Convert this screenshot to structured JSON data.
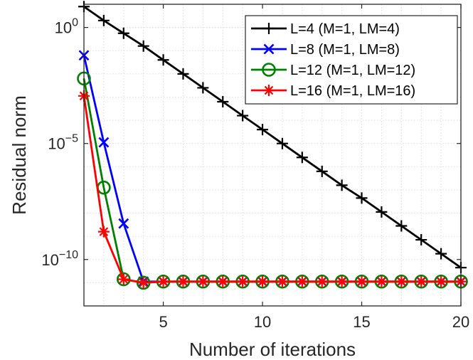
{
  "chart_data": {
    "type": "line",
    "xlabel": "Number of iterations",
    "ylabel": "Residual norm",
    "x_scale": "linear",
    "y_scale": "log",
    "xlim": [
      1,
      20
    ],
    "ylim_log10": [
      -12,
      1
    ],
    "x_ticks": [
      5,
      10,
      15,
      20
    ],
    "x_tick_labels": [
      "5",
      "10",
      "15",
      "20"
    ],
    "y_ticks_log10": [
      0,
      -5,
      -10
    ],
    "y_tick_labels": [
      {
        "base": "10",
        "exp": "0"
      },
      {
        "base": "10",
        "exp": "−5"
      },
      {
        "base": "10",
        "exp": "−10"
      }
    ],
    "grid": true,
    "legend_position": "top-right",
    "series": [
      {
        "name": "L=4 (M=1, LM=4)",
        "color": "#000000",
        "marker": "plus",
        "x": [
          1,
          2,
          3,
          4,
          5,
          6,
          7,
          8,
          9,
          10,
          11,
          12,
          13,
          14,
          15,
          16,
          17,
          18,
          19,
          20
        ],
        "log10_y": [
          0.9,
          0.3,
          -0.25,
          -0.8,
          -1.4,
          -2.0,
          -2.6,
          -3.2,
          -3.8,
          -4.4,
          -5.0,
          -5.6,
          -6.2,
          -6.8,
          -7.35,
          -7.95,
          -8.55,
          -9.15,
          -9.75,
          -10.35
        ]
      },
      {
        "name": "L=8 (M=1, LM=8)",
        "color": "#0000ff",
        "marker": "x",
        "x": [
          1,
          2,
          3,
          4,
          5,
          6,
          7,
          8,
          9,
          10,
          11,
          12,
          13,
          14,
          15,
          16,
          17,
          18,
          19,
          20
        ],
        "log10_y": [
          -1.2,
          -4.95,
          -8.45,
          -10.95,
          -10.95,
          -10.95,
          -10.95,
          -10.95,
          -10.95,
          -10.95,
          -10.95,
          -10.95,
          -10.95,
          -10.95,
          -10.95,
          -10.95,
          -10.95,
          -10.95,
          -10.95,
          -10.95
        ]
      },
      {
        "name": "L=12 (M=1, LM=12)",
        "color": "#008000",
        "marker": "circle",
        "x": [
          1,
          2,
          3,
          4,
          5,
          6,
          7,
          8,
          9,
          10,
          11,
          12,
          13,
          14,
          15,
          16,
          17,
          18,
          19,
          20
        ],
        "log10_y": [
          -2.2,
          -6.9,
          -10.85,
          -11.0,
          -10.95,
          -10.95,
          -10.95,
          -10.95,
          -10.95,
          -10.95,
          -10.95,
          -10.95,
          -10.95,
          -10.95,
          -10.95,
          -10.95,
          -10.95,
          -10.95,
          -10.95,
          -10.95
        ]
      },
      {
        "name": "L=16 (M=1, LM=16)",
        "color": "#ff0000",
        "marker": "star",
        "x": [
          1,
          2,
          3,
          4,
          5,
          6,
          7,
          8,
          9,
          10,
          11,
          12,
          13,
          14,
          15,
          16,
          17,
          18,
          19,
          20
        ],
        "log10_y": [
          -2.95,
          -8.8,
          -10.85,
          -11.0,
          -10.95,
          -10.95,
          -10.95,
          -10.95,
          -10.95,
          -10.95,
          -10.95,
          -10.95,
          -10.95,
          -10.95,
          -10.95,
          -10.95,
          -10.95,
          -10.95,
          -10.95,
          -10.95
        ]
      }
    ]
  }
}
